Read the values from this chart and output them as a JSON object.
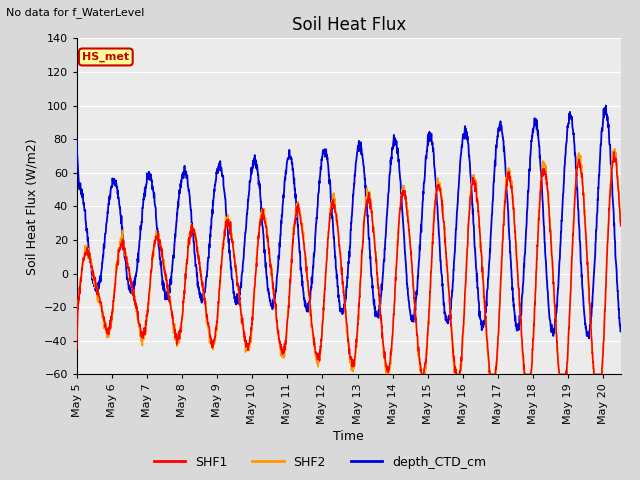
{
  "title": "Soil Heat Flux",
  "subtitle": "No data for f_WaterLevel",
  "ylabel": "Soil Heat Flux (W/m2)",
  "xlabel": "Time",
  "ylim": [
    -60,
    140
  ],
  "xtick_labels": [
    "May 5",
    "May 6",
    "May 7",
    "May 8",
    "May 9",
    "May 10",
    "May 11",
    "May 12",
    "May 13",
    "May 14",
    "May 15",
    "May 16",
    "May 17",
    "May 18",
    "May 19",
    "May 20"
  ],
  "legend_labels": [
    "SHF1",
    "SHF2",
    "depth_CTD_cm"
  ],
  "colors": {
    "SHF1": "#ff0000",
    "SHF2": "#ff9900",
    "depth_CTD_cm": "#0000dd"
  },
  "annotation_box": {
    "text": "HS_met",
    "facecolor": "#ffff99",
    "edgecolor": "#cc0000",
    "textcolor": "#cc0000"
  },
  "bg_color": "#d9d9d9",
  "plot_bg_color": "#ebebeb",
  "grid_color": "#ffffff",
  "title_fontsize": 12,
  "axis_fontsize": 9,
  "tick_fontsize": 8
}
